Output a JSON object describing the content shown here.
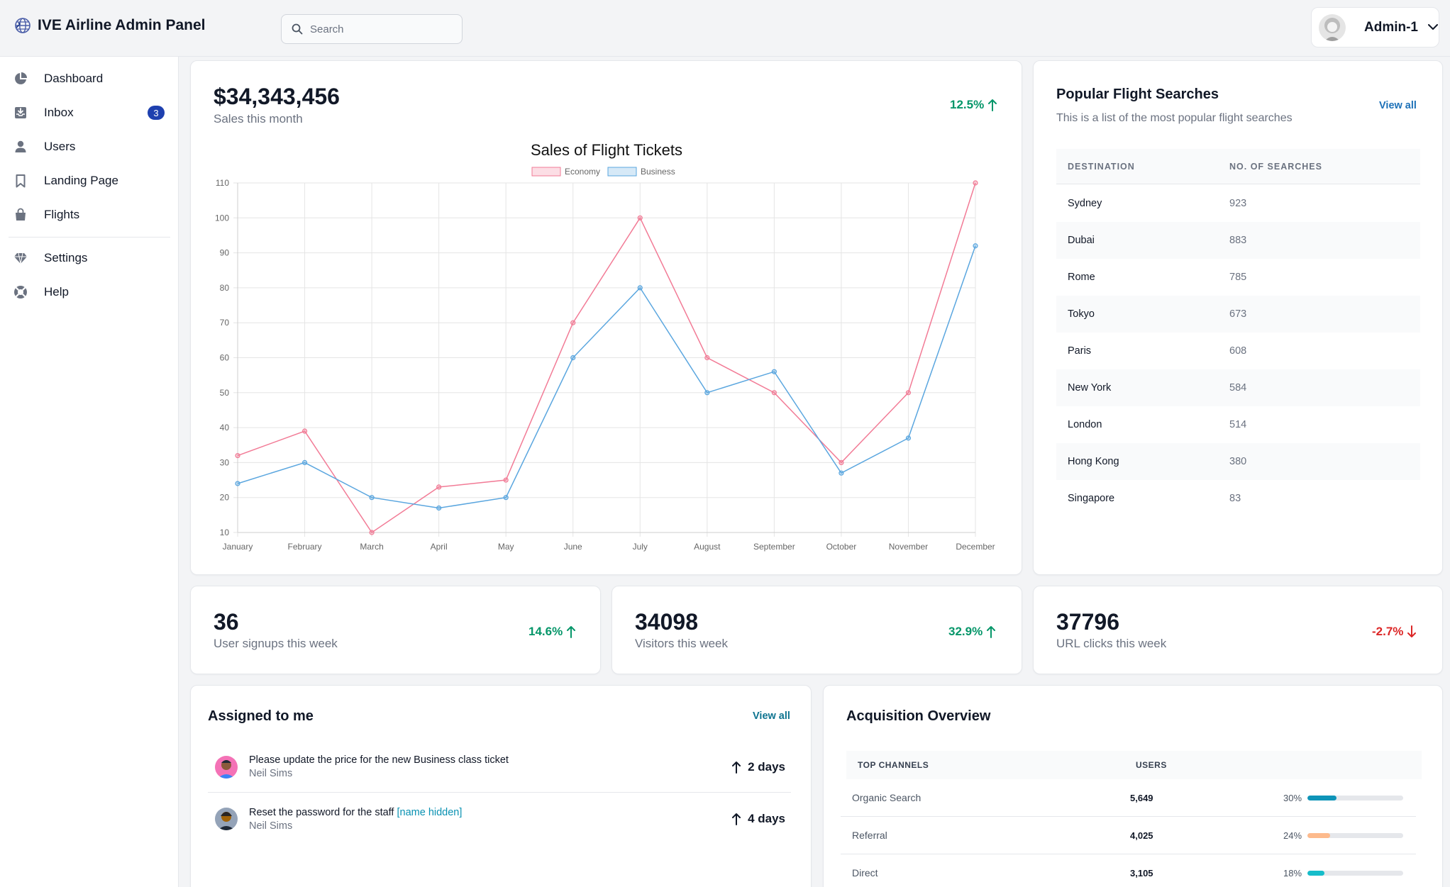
{
  "app": {
    "title": "IVE Airline Admin Panel"
  },
  "search": {
    "placeholder": "Search"
  },
  "user": {
    "name": "Admin-1"
  },
  "sidebar": {
    "items": [
      {
        "label": "Dashboard",
        "icon": "pie-chart-icon"
      },
      {
        "label": "Inbox",
        "icon": "inbox-icon",
        "badge": "3"
      },
      {
        "label": "Users",
        "icon": "user-icon"
      },
      {
        "label": "Landing Page",
        "icon": "bookmark-icon"
      },
      {
        "label": "Flights",
        "icon": "shopping-bag-icon"
      }
    ],
    "footer_items": [
      {
        "label": "Settings",
        "icon": "diamond-icon"
      },
      {
        "label": "Help",
        "icon": "lifebuoy-icon"
      }
    ]
  },
  "sales": {
    "value": "$34,343,456",
    "label": "Sales this month",
    "delta": "12.5%",
    "delta_direction": "up"
  },
  "chart_data": {
    "type": "line",
    "title": "Sales of Flight Tickets",
    "categories": [
      "January",
      "February",
      "March",
      "April",
      "May",
      "June",
      "July",
      "August",
      "September",
      "October",
      "November",
      "December"
    ],
    "series": [
      {
        "name": "Economy",
        "color": "#f27b96",
        "values": [
          32,
          39,
          10,
          23,
          25,
          70,
          100,
          60,
          50,
          30,
          50,
          110
        ]
      },
      {
        "name": "Business",
        "color": "#5aa6df",
        "values": [
          24,
          30,
          20,
          17,
          20,
          60,
          80,
          50,
          56,
          27,
          37,
          92
        ]
      }
    ],
    "yticks": [
      10,
      20,
      30,
      40,
      50,
      60,
      70,
      80,
      90,
      100,
      110
    ],
    "ylim": [
      10,
      110
    ],
    "grid": true,
    "legend": "top"
  },
  "popular": {
    "title": "Popular Flight Searches",
    "subtitle": "This is a list of the most popular flight searches",
    "view_all": "View all",
    "columns": [
      "Destination",
      "No. of searches"
    ],
    "rows": [
      {
        "destination": "Sydney",
        "searches": "923"
      },
      {
        "destination": "Dubai",
        "searches": "883"
      },
      {
        "destination": "Rome",
        "searches": "785"
      },
      {
        "destination": "Tokyo",
        "searches": "673"
      },
      {
        "destination": "Paris",
        "searches": "608"
      },
      {
        "destination": "New York",
        "searches": "584"
      },
      {
        "destination": "London",
        "searches": "514"
      },
      {
        "destination": "Hong Kong",
        "searches": "380"
      },
      {
        "destination": "Singapore",
        "searches": "83"
      }
    ]
  },
  "stats": [
    {
      "value": "36",
      "label": "User signups this week",
      "delta": "14.6%",
      "direction": "up"
    },
    {
      "value": "34098",
      "label": "Visitors this week",
      "delta": "32.9%",
      "direction": "up"
    },
    {
      "value": "37796",
      "label": "URL clicks this week",
      "delta": "-2.7%",
      "direction": "down"
    }
  ],
  "assigned": {
    "title": "Assigned to me",
    "view_all": "View all",
    "tasks": [
      {
        "title": "Please update the price for the new Business class ticket",
        "highlight": "",
        "author": "Neil Sims",
        "due": "2 days"
      },
      {
        "title": "Reset the password for the staff ",
        "highlight": "[name hidden]",
        "author": "Neil Sims",
        "due": "4 days"
      }
    ]
  },
  "acquisition": {
    "title": "Acquisition Overview",
    "columns": [
      "Top Channels",
      "Users"
    ],
    "rows": [
      {
        "channel": "Organic Search",
        "users": "5,649",
        "percent": "30%",
        "fraction": 0.3,
        "color": "#0e94b8"
      },
      {
        "channel": "Referral",
        "users": "4,025",
        "percent": "24%",
        "fraction": 0.24,
        "color": "#fdba8c"
      },
      {
        "channel": "Direct",
        "users": "3,105",
        "percent": "18%",
        "fraction": 0.18,
        "color": "#16bdca"
      }
    ]
  }
}
